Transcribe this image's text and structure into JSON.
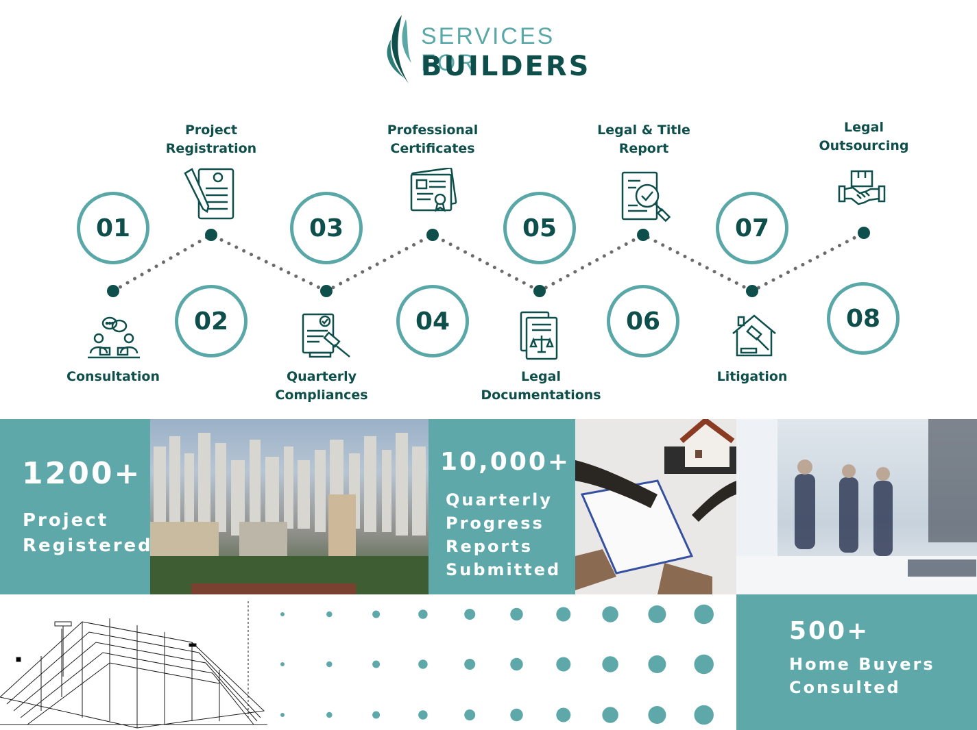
{
  "logo": {
    "line1": "SERVICES FOR",
    "line2": "BUILDERS"
  },
  "steps": [
    {
      "number": "01",
      "label_lines": [
        "Consultation"
      ],
      "icon": "consultation-icon"
    },
    {
      "number": "02",
      "label_lines": [
        "Project",
        "Registration"
      ],
      "icon": "document-pen-icon"
    },
    {
      "number": "03",
      "label_lines": [
        "Quarterly",
        "Compliances"
      ],
      "icon": "gavel-document-icon"
    },
    {
      "number": "04",
      "label_lines": [
        "Professional",
        "Certificates"
      ],
      "icon": "certificate-icon"
    },
    {
      "number": "05",
      "label_lines": [
        "Legal",
        "Documentations"
      ],
      "icon": "legal-documents-icon"
    },
    {
      "number": "06",
      "label_lines": [
        "Legal & Title",
        "Report"
      ],
      "icon": "report-search-icon"
    },
    {
      "number": "07",
      "label_lines": [
        "Litigation"
      ],
      "icon": "house-gavel-icon"
    },
    {
      "number": "08",
      "label_lines": [
        "Legal",
        "Outsourcing"
      ],
      "icon": "handshake-icon"
    }
  ],
  "stats": [
    {
      "value": "1200+",
      "desc_lines": [
        "Project",
        "Registered"
      ]
    },
    {
      "value": "10,000+",
      "desc_lines": [
        "Quarterly",
        "Progress",
        "Reports",
        "Submitted"
      ]
    },
    {
      "value": "500+",
      "desc_lines": [
        "Home Buyers",
        "Consulted"
      ]
    }
  ],
  "colors": {
    "dark": "#0f4f4b",
    "teal": "#5ea8a9",
    "ring": "#5aa7a7",
    "dotted": "#6b6b6b"
  }
}
